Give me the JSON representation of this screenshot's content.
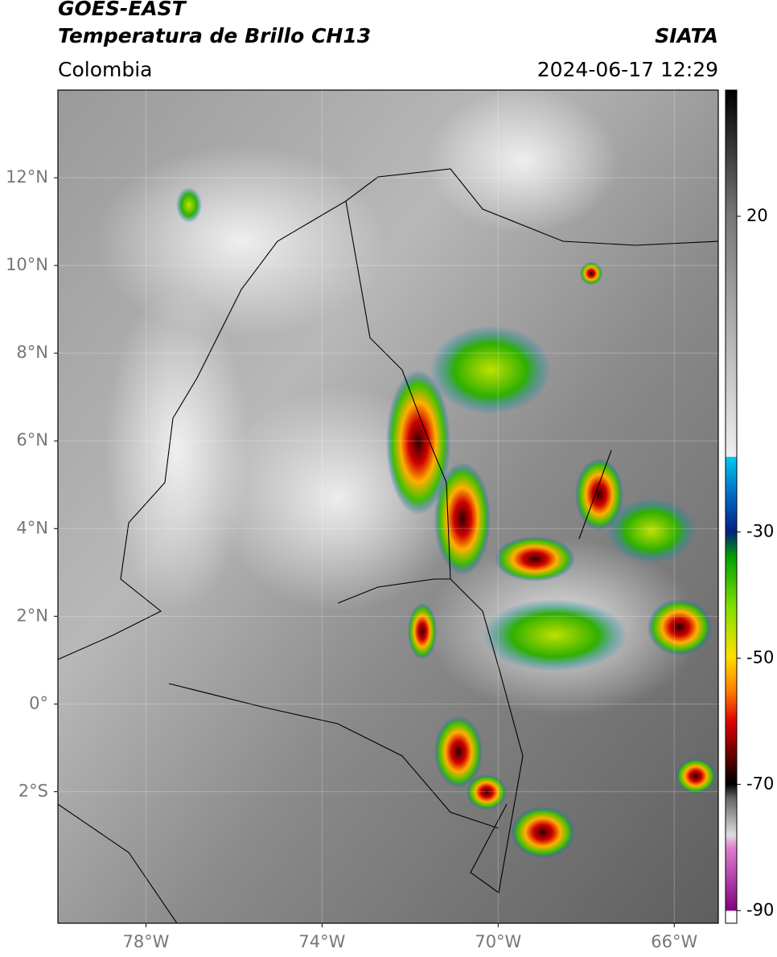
{
  "header": {
    "title": "GOES-EAST",
    "subtitle": "Temperatura de Brillo CH13",
    "source": "SIATA",
    "region": "Colombia",
    "timestamp": "2024-06-17 12:29"
  },
  "map": {
    "xlim": [
      -80,
      -65
    ],
    "ylim": [
      -5,
      14
    ],
    "xticks": [
      {
        "value": -78,
        "label": "78°W"
      },
      {
        "value": -74,
        "label": "74°W"
      },
      {
        "value": -70,
        "label": "70°W"
      },
      {
        "value": -66,
        "label": "66°W"
      }
    ],
    "yticks": [
      {
        "value": 12,
        "label": "12°N"
      },
      {
        "value": 10,
        "label": "10°N"
      },
      {
        "value": 8,
        "label": "8°N"
      },
      {
        "value": 6,
        "label": "6°N"
      },
      {
        "value": 4,
        "label": "4°N"
      },
      {
        "value": 2,
        "label": "2°N"
      },
      {
        "value": 0,
        "label": "0°"
      },
      {
        "value": -2,
        "label": "2°S"
      }
    ]
  },
  "colorbar": {
    "ylim": [
      -92,
      40
    ],
    "yticks": [
      20,
      -30,
      -50,
      -70,
      -90
    ]
  }
}
